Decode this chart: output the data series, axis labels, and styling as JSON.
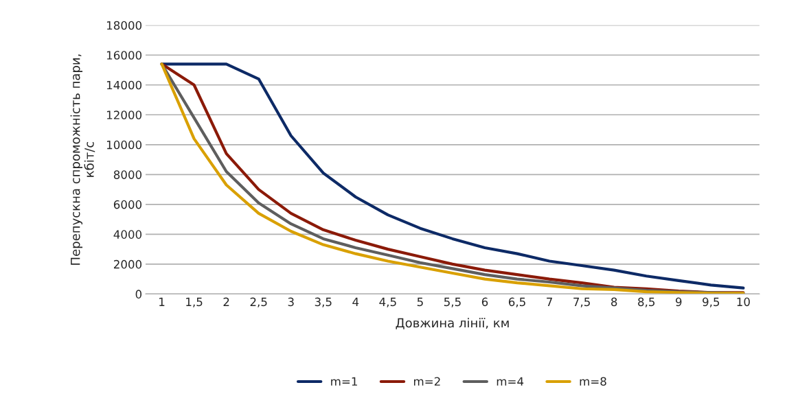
{
  "chart_data": {
    "type": "line",
    "xlabel": "Довжина лінії, км",
    "ylabel": "Перепускна спроможність пари,\nкбіт/с",
    "categories": [
      "1",
      "1,5",
      "2",
      "2,5",
      "3",
      "3,5",
      "4",
      "4,5",
      "5",
      "5,5",
      "6",
      "6,5",
      "7",
      "7,5",
      "8",
      "8,5",
      "9",
      "9,5",
      "10"
    ],
    "series": [
      {
        "name": "m=1",
        "color": "#0d2a66",
        "values": [
          15400,
          15400,
          15400,
          14400,
          10600,
          8100,
          6500,
          5300,
          4400,
          3700,
          3100,
          2700,
          2200,
          1900,
          1600,
          1200,
          900,
          600,
          400
        ]
      },
      {
        "name": "m=2",
        "color": "#8b1a08",
        "values": [
          15400,
          14000,
          9400,
          7000,
          5400,
          4300,
          3600,
          3000,
          2500,
          2000,
          1600,
          1300,
          1000,
          750,
          450,
          350,
          200,
          100,
          100
        ]
      },
      {
        "name": "m=4",
        "color": "#5e5e5e",
        "values": [
          15400,
          11800,
          8200,
          6100,
          4700,
          3700,
          3100,
          2600,
          2100,
          1700,
          1300,
          1000,
          800,
          550,
          400,
          250,
          150,
          100,
          50
        ]
      },
      {
        "name": "m=8",
        "color": "#d9a000",
        "values": [
          15400,
          10400,
          7300,
          5400,
          4200,
          3300,
          2700,
          2200,
          1800,
          1400,
          1000,
          750,
          550,
          350,
          300,
          150,
          100,
          50,
          50
        ]
      }
    ],
    "ylim": [
      0,
      18000
    ],
    "yticks": [
      0,
      2000,
      4000,
      6000,
      8000,
      10000,
      12000,
      14000,
      16000,
      18000
    ],
    "grid": "y",
    "legend": "bottom",
    "marker": "none",
    "line_style": "solid"
  }
}
